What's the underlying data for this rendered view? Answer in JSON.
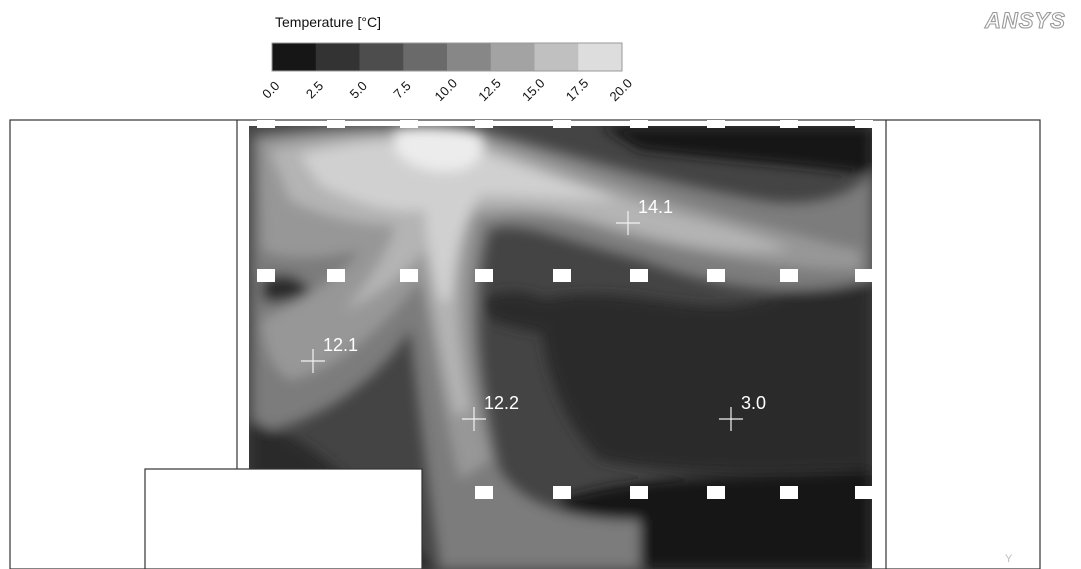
{
  "chart_data": {
    "type": "heatmap",
    "title": "",
    "legend": {
      "title": "Temperature [°C]",
      "ticks": [
        "0.0",
        "2.5",
        "5.0",
        "7.5",
        "10.0",
        "12.5",
        "15.0",
        "17.5",
        "20.0"
      ],
      "range": [
        0.0,
        20.0
      ],
      "colors": [
        "#141414",
        "#2c2c2c",
        "#444444",
        "#5f5f5f",
        "#7b7b7b",
        "#979797",
        "#b4b4b4",
        "#d0d0d0",
        "#ececec"
      ],
      "placement": "top-left"
    },
    "probes": [
      {
        "label": "14.1",
        "value": 14.1
      },
      {
        "label": "12.1",
        "value": 12.1
      },
      {
        "label": "12.2",
        "value": 12.2
      },
      {
        "label": "3.0",
        "value": 3.0
      }
    ]
  },
  "branding": {
    "logo_text": "ANSYS",
    "axis_triad_label": "Y"
  }
}
